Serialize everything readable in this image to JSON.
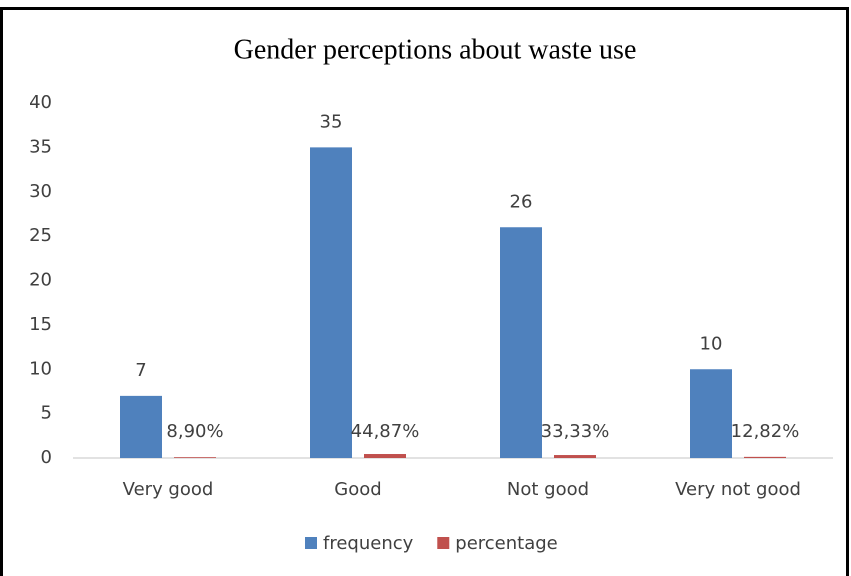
{
  "chart_data": {
    "type": "bar",
    "title": "Gender perceptions about waste use",
    "categories": [
      "Very good",
      "Good",
      "Not good",
      "Very not good"
    ],
    "series": [
      {
        "name": "frequency",
        "color": "#4f81bd",
        "values": [
          7,
          35,
          26,
          10
        ]
      },
      {
        "name": "percentage",
        "color": "#c0504d",
        "values": [
          0.089,
          0.4487,
          0.3333,
          0.1282
        ],
        "value_labels": [
          "8,90%",
          "44,87%",
          "33,33%",
          "12,82%"
        ]
      }
    ],
    "ylim": [
      0,
      40
    ],
    "yticks": [
      0,
      5,
      10,
      15,
      20,
      25,
      30,
      35,
      40
    ],
    "legend": "bottom"
  }
}
